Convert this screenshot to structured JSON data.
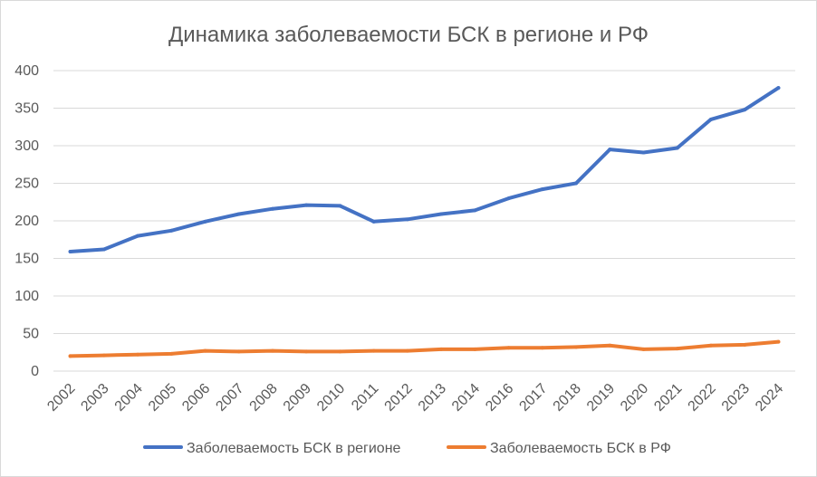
{
  "chart_data": {
    "type": "line",
    "title": "Динамика заболеваемости  БСК в регионе и РФ",
    "xlabel": "",
    "ylabel": "",
    "ylim": [
      0,
      400
    ],
    "yticks": [
      0,
      50,
      100,
      150,
      200,
      250,
      300,
      350,
      400
    ],
    "grid": true,
    "legend_position": "bottom",
    "categories": [
      "2002",
      "2003",
      "2004",
      "2005",
      "2006",
      "2007",
      "2008",
      "2009",
      "2010",
      "2011",
      "2012",
      "2013",
      "2014",
      "2016",
      "2017",
      "2018",
      "2019",
      "2020",
      "2021",
      "2022",
      "2023",
      "2024"
    ],
    "series": [
      {
        "name": "Заболеваемость БСК в регионе",
        "color": "#4472c4",
        "values": [
          159,
          162,
          180,
          187,
          199,
          209,
          216,
          221,
          220,
          199,
          202,
          209,
          214,
          230,
          242,
          250,
          295,
          291,
          297,
          335,
          348,
          377
        ]
      },
      {
        "name": "Заболеваемость БСК в РФ",
        "color": "#ed7d31",
        "values": [
          20,
          21,
          22,
          23,
          27,
          26,
          27,
          26,
          26,
          27,
          27,
          29,
          29,
          31,
          31,
          32,
          34,
          29,
          30,
          34,
          35,
          39
        ]
      }
    ]
  }
}
